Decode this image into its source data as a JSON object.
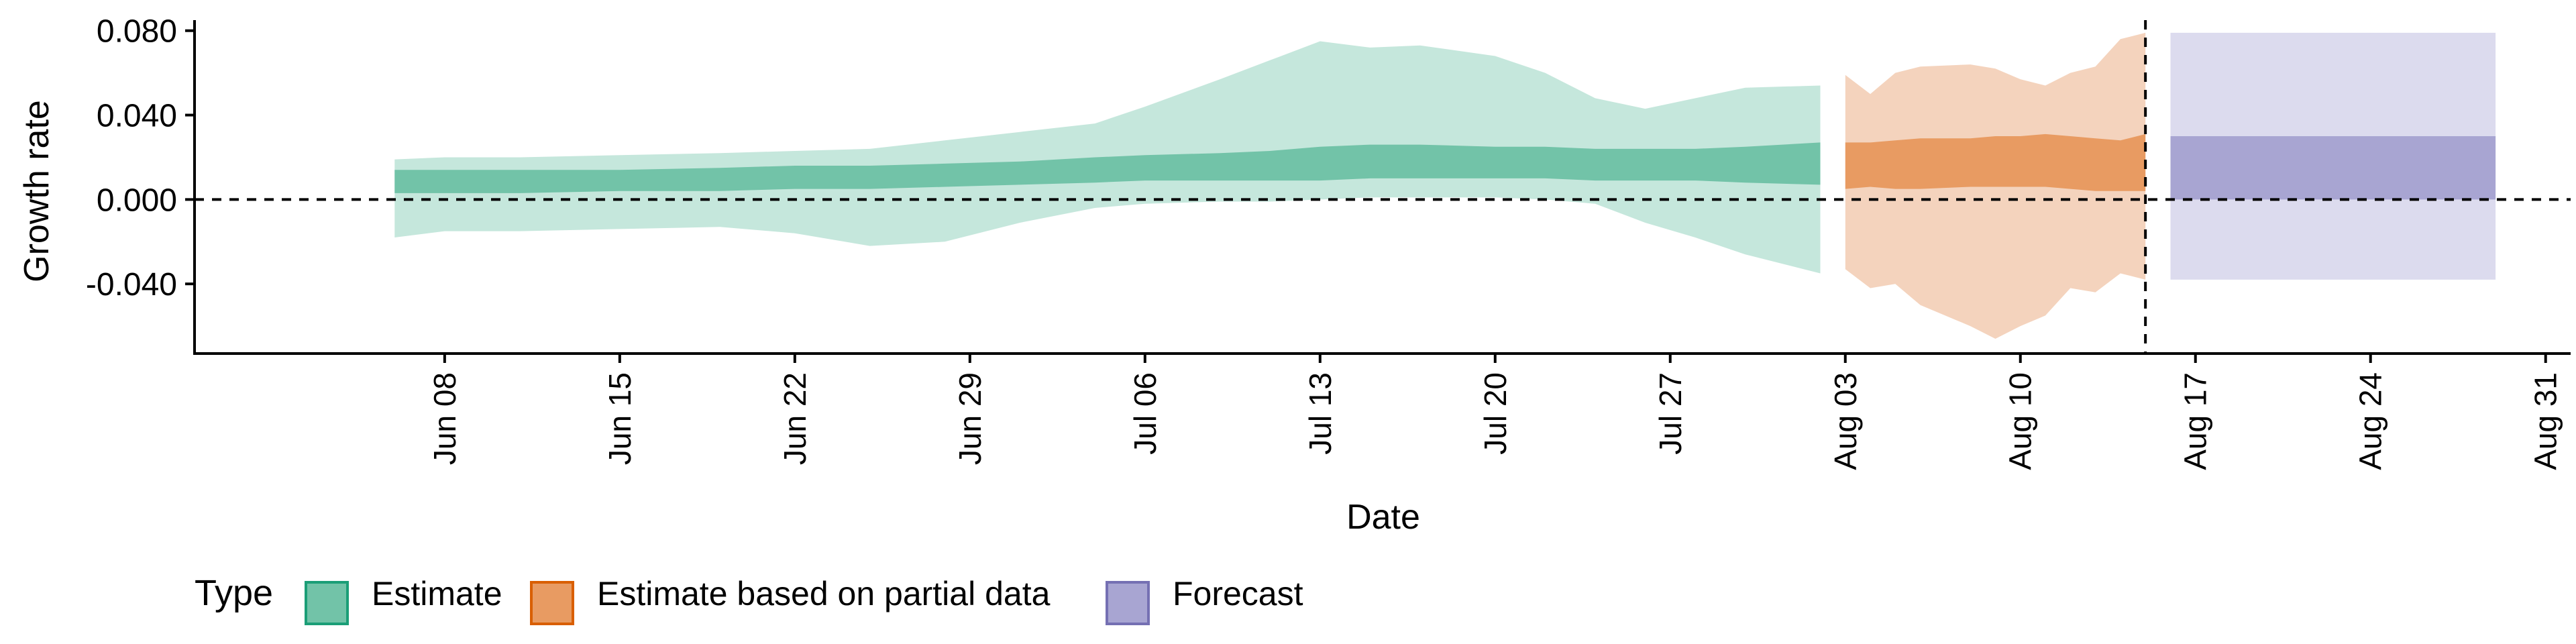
{
  "chart_data": {
    "type": "area",
    "title": "",
    "xlabel": "Date",
    "ylabel": "Growth rate",
    "x_tick_labels": [
      "Jun 08",
      "Jun 15",
      "Jun 22",
      "Jun 29",
      "Jul 06",
      "Jul 13",
      "Jul 20",
      "Jul 27",
      "Aug 03",
      "Aug 10",
      "Aug 17",
      "Aug 24",
      "Aug 31"
    ],
    "x_ticks": [
      "2020-06-08",
      "2020-06-15",
      "2020-06-22",
      "2020-06-29",
      "2020-07-06",
      "2020-07-13",
      "2020-07-20",
      "2020-07-27",
      "2020-08-03",
      "2020-08-10",
      "2020-08-17",
      "2020-08-24",
      "2020-08-31"
    ],
    "xlim": [
      "2020-05-29",
      "2020-09-01"
    ],
    "y_ticks": [
      -0.04,
      0.0,
      0.04,
      0.08
    ],
    "y_tick_labels": [
      "-0.040",
      "0.000",
      "0.040",
      "0.080"
    ],
    "ylim": [
      -0.073,
      0.085
    ],
    "reference_lines": {
      "horizontal_y": 0.0,
      "vertical_x": "2020-08-15",
      "style": "dashed"
    },
    "grid": false,
    "legend": {
      "title": "Type",
      "position": "bottom-left",
      "entries": [
        {
          "label": "Estimate",
          "fill": "#72c3a8",
          "stroke": "#1b9e77"
        },
        {
          "label": "Estimate based on partial data",
          "fill": "#e89b62",
          "stroke": "#d95f02"
        },
        {
          "label": "Forecast",
          "fill": "#a8a5d2",
          "stroke": "#7570b3"
        }
      ]
    },
    "series": [
      {
        "name": "Estimate",
        "outer_fill": "#c5e7dc",
        "inner_fill": "#72c3a8",
        "points": [
          {
            "x": "2020-06-06",
            "outer": [
              -0.018,
              0.019
            ],
            "inner": [
              0.003,
              0.014
            ]
          },
          {
            "x": "2020-06-08",
            "outer": [
              -0.015,
              0.02
            ],
            "inner": [
              0.003,
              0.014
            ]
          },
          {
            "x": "2020-06-11",
            "outer": [
              -0.015,
              0.02
            ],
            "inner": [
              0.003,
              0.014
            ]
          },
          {
            "x": "2020-06-15",
            "outer": [
              -0.014,
              0.021
            ],
            "inner": [
              0.004,
              0.014
            ]
          },
          {
            "x": "2020-06-19",
            "outer": [
              -0.013,
              0.022
            ],
            "inner": [
              0.004,
              0.015
            ]
          },
          {
            "x": "2020-06-22",
            "outer": [
              -0.016,
              0.023
            ],
            "inner": [
              0.005,
              0.016
            ]
          },
          {
            "x": "2020-06-25",
            "outer": [
              -0.022,
              0.024
            ],
            "inner": [
              0.005,
              0.016
            ]
          },
          {
            "x": "2020-06-28",
            "outer": [
              -0.02,
              0.028
            ],
            "inner": [
              0.006,
              0.017
            ]
          },
          {
            "x": "2020-07-01",
            "outer": [
              -0.011,
              0.032
            ],
            "inner": [
              0.007,
              0.018
            ]
          },
          {
            "x": "2020-07-04",
            "outer": [
              -0.004,
              0.036
            ],
            "inner": [
              0.008,
              0.02
            ]
          },
          {
            "x": "2020-07-06",
            "outer": [
              -0.002,
              0.044
            ],
            "inner": [
              0.009,
              0.021
            ]
          },
          {
            "x": "2020-07-09",
            "outer": [
              -0.001,
              0.057
            ],
            "inner": [
              0.009,
              0.022
            ]
          },
          {
            "x": "2020-07-11",
            "outer": [
              -0.001,
              0.066
            ],
            "inner": [
              0.009,
              0.023
            ]
          },
          {
            "x": "2020-07-13",
            "outer": [
              0.0,
              0.075
            ],
            "inner": [
              0.009,
              0.025
            ]
          },
          {
            "x": "2020-07-15",
            "outer": [
              0.001,
              0.072
            ],
            "inner": [
              0.01,
              0.026
            ]
          },
          {
            "x": "2020-07-17",
            "outer": [
              0.001,
              0.073
            ],
            "inner": [
              0.01,
              0.026
            ]
          },
          {
            "x": "2020-07-20",
            "outer": [
              0.001,
              0.068
            ],
            "inner": [
              0.01,
              0.025
            ]
          },
          {
            "x": "2020-07-22",
            "outer": [
              0.0,
              0.06
            ],
            "inner": [
              0.01,
              0.025
            ]
          },
          {
            "x": "2020-07-24",
            "outer": [
              -0.002,
              0.048
            ],
            "inner": [
              0.009,
              0.024
            ]
          },
          {
            "x": "2020-07-26",
            "outer": [
              -0.011,
              0.043
            ],
            "inner": [
              0.009,
              0.024
            ]
          },
          {
            "x": "2020-07-28",
            "outer": [
              -0.018,
              0.048
            ],
            "inner": [
              0.009,
              0.024
            ]
          },
          {
            "x": "2020-07-30",
            "outer": [
              -0.026,
              0.053
            ],
            "inner": [
              0.008,
              0.025
            ]
          },
          {
            "x": "2020-08-02",
            "outer": [
              -0.035,
              0.054
            ],
            "inner": [
              0.007,
              0.027
            ]
          }
        ]
      },
      {
        "name": "Estimate based on partial data",
        "outer_fill": "#f4d3bd",
        "inner_fill": "#e89b62",
        "points": [
          {
            "x": "2020-08-03",
            "outer": [
              -0.033,
              0.059
            ],
            "inner": [
              0.005,
              0.027
            ]
          },
          {
            "x": "2020-08-04",
            "outer": [
              -0.042,
              0.05
            ],
            "inner": [
              0.006,
              0.027
            ]
          },
          {
            "x": "2020-08-05",
            "outer": [
              -0.04,
              0.06
            ],
            "inner": [
              0.005,
              0.028
            ]
          },
          {
            "x": "2020-08-06",
            "outer": [
              -0.05,
              0.063
            ],
            "inner": [
              0.005,
              0.029
            ]
          },
          {
            "x": "2020-08-08",
            "outer": [
              -0.06,
              0.064
            ],
            "inner": [
              0.006,
              0.029
            ]
          },
          {
            "x": "2020-08-09",
            "outer": [
              -0.066,
              0.062
            ],
            "inner": [
              0.006,
              0.03
            ]
          },
          {
            "x": "2020-08-10",
            "outer": [
              -0.06,
              0.057
            ],
            "inner": [
              0.006,
              0.03
            ]
          },
          {
            "x": "2020-08-11",
            "outer": [
              -0.055,
              0.054
            ],
            "inner": [
              0.006,
              0.031
            ]
          },
          {
            "x": "2020-08-12",
            "outer": [
              -0.042,
              0.06
            ],
            "inner": [
              0.005,
              0.03
            ]
          },
          {
            "x": "2020-08-13",
            "outer": [
              -0.044,
              0.063
            ],
            "inner": [
              0.004,
              0.029
            ]
          },
          {
            "x": "2020-08-14",
            "outer": [
              -0.035,
              0.076
            ],
            "inner": [
              0.004,
              0.028
            ]
          },
          {
            "x": "2020-08-15",
            "outer": [
              -0.038,
              0.079
            ],
            "inner": [
              0.004,
              0.031
            ]
          }
        ]
      },
      {
        "name": "Forecast",
        "outer_fill": "#dcdbee",
        "inner_fill": "#a8a5d2",
        "points": [
          {
            "x": "2020-08-16",
            "outer": [
              -0.038,
              0.079
            ],
            "inner": [
              0.0,
              0.03
            ]
          },
          {
            "x": "2020-08-29",
            "outer": [
              -0.038,
              0.079
            ],
            "inner": [
              0.0,
              0.03
            ]
          }
        ]
      }
    ]
  }
}
